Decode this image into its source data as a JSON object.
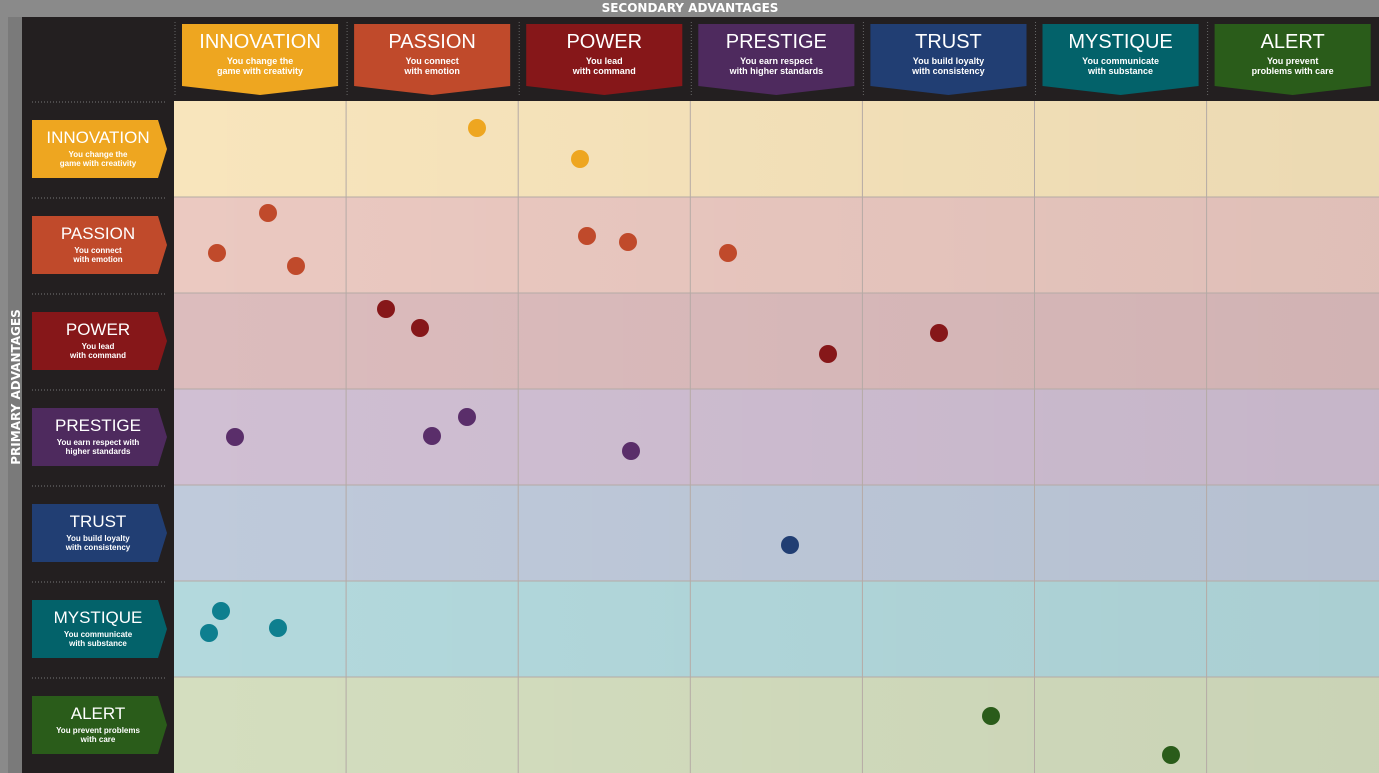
{
  "header": {
    "title": "SECONDARY ADVANTAGES",
    "side_title": "PRIMARY ADVANTAGES"
  },
  "columns": [
    {
      "name": "INNOVATION",
      "lines": [
        "You change the",
        "game with creativity"
      ],
      "color": "#eea620"
    },
    {
      "name": "PASSION",
      "lines": [
        "You connect",
        "with emotion"
      ],
      "color": "#c04a2b"
    },
    {
      "name": "POWER",
      "lines": [
        "You lead",
        "with command"
      ],
      "color": "#861719"
    },
    {
      "name": "PRESTIGE",
      "lines": [
        "You earn respect",
        "with higher standards"
      ],
      "color": "#4e2a5e"
    },
    {
      "name": "TRUST",
      "lines": [
        "You build loyalty",
        "with consistency"
      ],
      "color": "#213e73"
    },
    {
      "name": "MYSTIQUE",
      "lines": [
        "You communicate",
        "with substance"
      ],
      "color": "#03626a"
    },
    {
      "name": "ALERT",
      "lines": [
        "You prevent",
        "problems with care"
      ],
      "color": "#2a5c1a"
    }
  ],
  "rows": [
    {
      "name": "INNOVATION",
      "lines": [
        "You change the",
        "game with creativity"
      ],
      "color": "#eea620",
      "bg": "#f8e5bc"
    },
    {
      "name": "PASSION",
      "lines": [
        "You connect",
        "with emotion"
      ],
      "color": "#c04a2b",
      "bg": "#ebc9c1"
    },
    {
      "name": "POWER",
      "lines": [
        "You lead",
        "with command"
      ],
      "color": "#861719",
      "bg": "#dcbcbd"
    },
    {
      "name": "PRESTIGE",
      "lines": [
        "You earn respect with",
        "higher standards"
      ],
      "color": "#4e2a5e",
      "bg": "#d0bfd3"
    },
    {
      "name": "TRUST",
      "lines": [
        "You build loyalty",
        "with consistency"
      ],
      "color": "#213e73",
      "bg": "#bfcadb"
    },
    {
      "name": "MYSTIQUE",
      "lines": [
        "You communicate",
        "with substance"
      ],
      "color": "#03626a",
      "bg": "#b3d9dd"
    },
    {
      "name": "ALERT",
      "lines": [
        "You prevent problems",
        "with care"
      ],
      "color": "#2a5c1a",
      "bg": "#d4debf"
    }
  ]
}
